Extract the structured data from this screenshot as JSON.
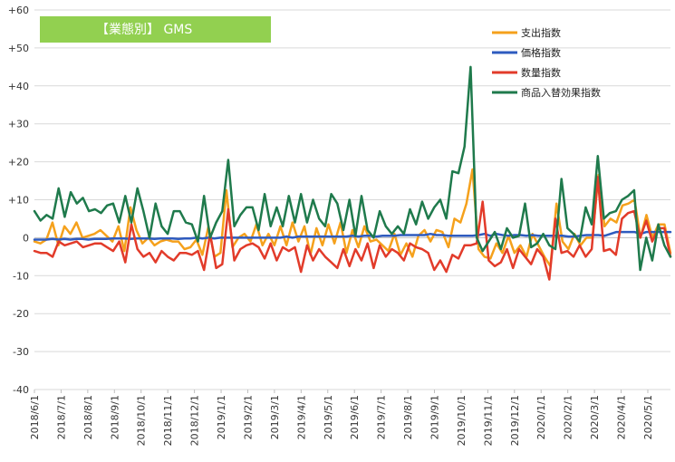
{
  "colors": {
    "title_bg": "#92d050",
    "grid": "#d9d9d9",
    "axis": "#bfbfbf",
    "spend": "#f5a11c",
    "price": "#2e5bbf",
    "quantity": "#e23b2a",
    "mix": "#1f7a4c"
  },
  "chart_data": {
    "type": "line",
    "title": "【業態別】 GMS",
    "ylim": [
      -40,
      60
    ],
    "y_ticks": [
      "+60",
      "+50",
      "+40",
      "+30",
      "+20",
      "+10",
      "0",
      "-10",
      "-20",
      "-30",
      "-40"
    ],
    "x_ticks": [
      "2018/6/1",
      "2018/7/1",
      "2018/8/1",
      "2018/9/1",
      "2018/10/1",
      "2018/11/1",
      "2018/12/1",
      "2019/1/1",
      "2019/2/1",
      "2019/3/1",
      "2019/4/1",
      "2019/5/1",
      "2019/6/1",
      "2019/7/1",
      "2019/8/1",
      "2019/9/1",
      "2019/10/1",
      "2019/11/1",
      "2019/12/1",
      "2020/1/1",
      "2020/2/1",
      "2020/3/1",
      "2020/4/1",
      "2020/5/1"
    ],
    "grid": "horizontal",
    "legend_position": "top-right",
    "series": [
      {
        "name": "支出指数",
        "values": [
          -1,
          -1.5,
          -0.5,
          4,
          -2,
          3,
          1,
          4,
          0,
          0.5,
          1,
          2,
          0.5,
          -1,
          3,
          -3.5,
          8,
          2,
          -1.5,
          0,
          -2,
          -1,
          -0.5,
          -1,
          -1,
          -3,
          -2.5,
          -0.5,
          -4.5,
          3,
          -5,
          -4,
          12.5,
          -2.5,
          0,
          1,
          -1,
          3.5,
          -2,
          1,
          -2,
          3,
          -2,
          4,
          -1,
          3,
          -4.5,
          2.5,
          -2,
          3.5,
          -1.5,
          4,
          -4,
          2,
          -2.5,
          3,
          -1,
          -0.5,
          -2,
          -3.5,
          1,
          -4.5,
          -1.5,
          -5,
          0.5,
          2,
          -1,
          2,
          1.5,
          -2.5,
          5,
          4,
          9,
          18,
          -3,
          -5,
          -5.5,
          -1.5,
          -4,
          0.5,
          -4,
          -2,
          -5,
          1,
          -2,
          -5,
          -7.5,
          9,
          -1,
          -3,
          1,
          -2,
          0,
          0,
          16.5,
          3,
          5,
          4,
          8.5,
          9,
          10,
          0,
          6,
          0,
          3.5,
          3.5,
          -4
        ]
      },
      {
        "name": "価格指数",
        "values": [
          -0.5,
          -0.5,
          -0.5,
          -0.3,
          -0.5,
          -0.3,
          -0.5,
          -0.3,
          -0.3,
          -0.5,
          -0.3,
          -0.3,
          -0.3,
          -0.2,
          -0.2,
          -0.2,
          -0.3,
          -0.2,
          -0.2,
          -0.2,
          -0.3,
          -0.2,
          -0.2,
          -0.2,
          -0.3,
          -0.2,
          -0.2,
          0,
          -0.2,
          0,
          -0.2,
          0,
          0,
          0,
          0,
          0,
          0,
          0,
          0,
          0,
          0,
          0,
          0.3,
          0,
          0.3,
          0.3,
          0.3,
          0.3,
          0.3,
          0.3,
          0.3,
          0.3,
          0.3,
          0.5,
          0.3,
          0.5,
          0.5,
          0.3,
          0.5,
          0.5,
          0.5,
          0.7,
          0.7,
          0.7,
          0.7,
          0.7,
          1,
          0.7,
          0.7,
          0.5,
          0.5,
          0.5,
          0.5,
          0.5,
          0.7,
          1,
          0.5,
          1,
          0.7,
          0.5,
          0.7,
          0.7,
          0.5,
          0.7,
          0.5,
          0.5,
          0.5,
          0.5,
          0.5,
          0.3,
          0.3,
          0.5,
          0.7,
          0.7,
          0.7,
          0.5,
          1,
          1.5,
          1.5,
          1.5,
          1.5,
          1,
          1.5,
          1.5,
          1.5,
          1.5,
          1.5
        ]
      },
      {
        "name": "数量指数",
        "values": [
          -3.5,
          -4,
          -4,
          -5,
          -1,
          -2,
          -1.5,
          -1,
          -2.5,
          -2,
          -1.5,
          -1.5,
          -2.5,
          -3.5,
          -1,
          -6.5,
          3.5,
          -3,
          -5,
          -4,
          -6.5,
          -3.5,
          -5,
          -6,
          -4,
          -4,
          -4.5,
          -3.5,
          -8.5,
          1,
          -8,
          -7,
          7.5,
          -6,
          -3,
          -2,
          -1.5,
          -2.5,
          -5.5,
          -1.5,
          -6,
          -2.5,
          -3.5,
          -2.5,
          -9,
          -2,
          -6,
          -3,
          -5,
          -6.5,
          -8,
          -3,
          -7.5,
          -3,
          -6,
          -1.5,
          -8,
          -2,
          -5,
          -3,
          -4,
          -6,
          -1.5,
          -2.5,
          -3,
          -4,
          -8.5,
          -6,
          -9,
          -4.5,
          -5.5,
          -2,
          -2,
          -1.5,
          9.5,
          -6,
          -7.5,
          -6.5,
          -3,
          -8,
          -3,
          -5,
          -7,
          -3,
          -5,
          -11,
          5,
          -4,
          -3.5,
          -5,
          -2,
          -5,
          -3,
          16,
          -3.5,
          -3,
          -4.5,
          5,
          6.5,
          7,
          0,
          4.5,
          -1,
          2.5,
          2.5,
          -5
        ]
      },
      {
        "name": "商品入替効果指数",
        "values": [
          7,
          4.5,
          6,
          5,
          13,
          5.5,
          12,
          9,
          10.5,
          7,
          7.5,
          6.5,
          8.5,
          9,
          4,
          11,
          4,
          13,
          7,
          0,
          9,
          3,
          1,
          7,
          7,
          4,
          3.5,
          -1,
          11,
          0,
          4,
          7,
          20.5,
          3,
          6,
          8,
          8,
          2,
          11.5,
          3,
          8,
          3,
          11,
          4,
          11.5,
          4,
          10,
          5,
          3,
          11.5,
          9,
          2,
          10,
          0.5,
          11,
          2,
          0,
          7,
          3,
          1,
          3,
          1,
          7.5,
          3.5,
          9.5,
          5,
          8,
          10,
          5,
          17.5,
          17,
          24,
          45,
          0,
          -3.5,
          -1,
          1.5,
          -3,
          2.5,
          0,
          0.5,
          9,
          -2.5,
          -1.5,
          1,
          -2,
          -3,
          15.5,
          2.5,
          1,
          -1,
          8,
          3.5,
          21.5,
          5,
          6.5,
          7,
          10,
          11,
          12.5,
          -8.5,
          0,
          -6,
          3.5,
          -2,
          -5
        ]
      }
    ]
  }
}
